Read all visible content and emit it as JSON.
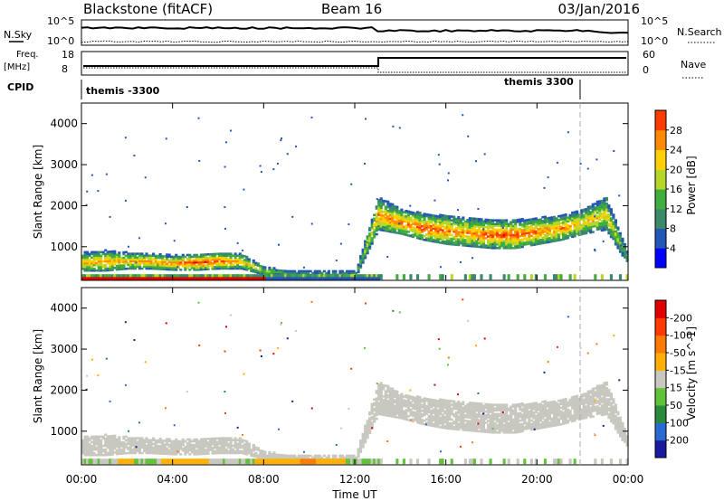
{
  "header": {
    "station": "Blackstone (fitACF)",
    "beam": "Beam 16",
    "date": "03/Jan/2016"
  },
  "top_panels": {
    "nsky_label": "N.Sky",
    "nsky_ticks": [
      "10^5",
      "10^0"
    ],
    "nsearch_label": "N.Search",
    "nsearch_ticks": [
      "10^5",
      "10^0"
    ],
    "freq_label": "Freq.",
    "freq_unit": "[MHz]",
    "freq_ticks": [
      "18",
      "8"
    ],
    "nave_label": "Nave",
    "nave_ticks": [
      "60",
      "0"
    ],
    "cpid_label": "CPID",
    "cpid_segments": [
      {
        "label": "themis -3300",
        "start_hour": 0,
        "end_hour": 22.2
      },
      {
        "label": "themis 3300",
        "start_hour": 22.2,
        "end_hour": 24
      }
    ]
  },
  "time_axis": {
    "label": "Time UT",
    "ticks": [
      "00:00",
      "04:00",
      "08:00",
      "12:00",
      "16:00",
      "20:00",
      "00:00"
    ],
    "range_hours": [
      0,
      24
    ]
  },
  "chart_data": [
    {
      "type": "heatmap",
      "name": "power",
      "ylabel": "Slant Range [km]",
      "yticks": [
        "1000",
        "2000",
        "3000",
        "4000"
      ],
      "ylim": [
        180,
        4500
      ],
      "colorbar_label": "Power [dB]",
      "colorbar_ticks": [
        "4",
        "8",
        "12",
        "16",
        "20",
        "24",
        "28"
      ],
      "colorbar_colors": [
        "#0000ff",
        "#2456b6",
        "#3a8a6a",
        "#3fae3f",
        "#b7d62a",
        "#ffd000",
        "#ff8a00",
        "#ff3c00",
        "#e00000"
      ],
      "x": [
        0,
        1,
        2,
        3,
        4,
        5,
        6,
        7,
        8,
        9,
        10,
        11,
        12,
        13,
        14,
        15,
        16,
        17,
        18,
        19,
        20,
        21,
        22,
        23,
        24
      ],
      "echo_band_km": [
        [
          400,
          850
        ],
        [
          400,
          900
        ],
        [
          450,
          850
        ],
        [
          450,
          820
        ],
        [
          420,
          780
        ],
        [
          420,
          800
        ],
        [
          450,
          850
        ],
        [
          450,
          820
        ],
        [
          300,
          500
        ],
        [
          250,
          400
        ],
        [
          250,
          400
        ],
        [
          250,
          400
        ],
        [
          250,
          400
        ],
        [
          1400,
          2200
        ],
        [
          1300,
          1900
        ],
        [
          1150,
          1800
        ],
        [
          1050,
          1750
        ],
        [
          1000,
          1700
        ],
        [
          950,
          1650
        ],
        [
          950,
          1650
        ],
        [
          1050,
          1700
        ],
        [
          1150,
          1750
        ],
        [
          1300,
          1900
        ],
        [
          1400,
          2200
        ],
        [
          500,
          800
        ]
      ],
      "peak_power_db": [
        22,
        24,
        22,
        24,
        26,
        30,
        28,
        22,
        16,
        10,
        10,
        10,
        10,
        24,
        26,
        28,
        26,
        24,
        28,
        28,
        26,
        24,
        22,
        20,
        10
      ]
    },
    {
      "type": "heatmap",
      "name": "velocity",
      "ylabel": "Slant Range [km]",
      "yticks": [
        "1000",
        "2000",
        "3000",
        "4000"
      ],
      "ylim": [
        180,
        4500
      ],
      "colorbar_label": "Velocity [m s^-1]",
      "colorbar_ticks": [
        "200",
        "100",
        "50",
        "15",
        "-15",
        "-50",
        "-100",
        "-200"
      ],
      "colorbar_colors": [
        "#1a1aa0",
        "#2a6ad0",
        "#2a8a3a",
        "#62c23a",
        "#c8c8c0",
        "#ffb000",
        "#ff7a00",
        "#ff3a00",
        "#e00000"
      ],
      "x": [
        0,
        1,
        2,
        3,
        4,
        5,
        6,
        7,
        8,
        9,
        10,
        11,
        12,
        13,
        14,
        15,
        16,
        17,
        18,
        19,
        20,
        21,
        22,
        23,
        24
      ],
      "ground_band_velocity": [
        -30,
        -30,
        -40,
        -20,
        -50,
        -40,
        -30,
        -20,
        -50,
        -60,
        -80,
        -40,
        -30,
        0,
        0,
        0,
        0,
        0,
        0,
        0,
        0,
        0,
        0,
        0,
        0
      ],
      "high_band_velocity": [
        0,
        0,
        0,
        0,
        0,
        0,
        0,
        0,
        0,
        0,
        0,
        0,
        0,
        0,
        0,
        0,
        0,
        0,
        0,
        0,
        0,
        0,
        0,
        0,
        0
      ]
    }
  ]
}
